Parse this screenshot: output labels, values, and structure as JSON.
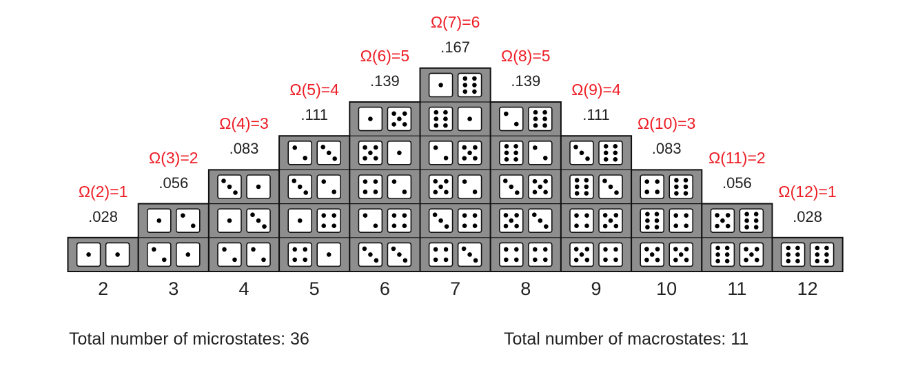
{
  "colors": {
    "omega_label": "#ee1c24",
    "text": "#222222",
    "block_fill": "#8e8e8e",
    "block_stroke": "#111111",
    "die_face": "#ffffff",
    "pip": "#000000"
  },
  "columns": [
    {
      "sum": "2",
      "omega": "Ω(2)=1",
      "probability": ".028",
      "pairs": [
        [
          1,
          1
        ]
      ]
    },
    {
      "sum": "3",
      "omega": "Ω(3)=2",
      "probability": ".056",
      "pairs": [
        [
          2,
          1
        ],
        [
          1,
          2
        ]
      ]
    },
    {
      "sum": "4",
      "omega": "Ω(4)=3",
      "probability": ".083",
      "pairs": [
        [
          2,
          2
        ],
        [
          1,
          3
        ],
        [
          3,
          1
        ]
      ]
    },
    {
      "sum": "5",
      "omega": "Ω(5)=4",
      "probability": ".111",
      "pairs": [
        [
          4,
          1
        ],
        [
          1,
          4
        ],
        [
          3,
          2
        ],
        [
          2,
          3
        ]
      ]
    },
    {
      "sum": "6",
      "omega": "Ω(6)=5",
      "probability": ".139",
      "pairs": [
        [
          3,
          3
        ],
        [
          2,
          4
        ],
        [
          4,
          2
        ],
        [
          5,
          1
        ],
        [
          1,
          5
        ]
      ]
    },
    {
      "sum": "7",
      "omega": "Ω(7)=6",
      "probability": ".167",
      "pairs": [
        [
          4,
          3
        ],
        [
          3,
          4
        ],
        [
          5,
          2
        ],
        [
          2,
          5
        ],
        [
          6,
          1
        ],
        [
          1,
          6
        ]
      ]
    },
    {
      "sum": "8",
      "omega": "Ω(8)=5",
      "probability": ".139",
      "pairs": [
        [
          4,
          4
        ],
        [
          5,
          3
        ],
        [
          3,
          5
        ],
        [
          6,
          2
        ],
        [
          2,
          6
        ]
      ]
    },
    {
      "sum": "9",
      "omega": "Ω(9)=4",
      "probability": ".111",
      "pairs": [
        [
          5,
          4
        ],
        [
          4,
          5
        ],
        [
          6,
          3
        ],
        [
          3,
          6
        ]
      ]
    },
    {
      "sum": "10",
      "omega": "Ω(10)=3",
      "probability": ".083",
      "pairs": [
        [
          5,
          5
        ],
        [
          6,
          4
        ],
        [
          4,
          6
        ]
      ]
    },
    {
      "sum": "11",
      "omega": "Ω(11)=2",
      "probability": ".056",
      "pairs": [
        [
          6,
          5
        ],
        [
          5,
          6
        ]
      ]
    },
    {
      "sum": "12",
      "omega": "Ω(12)=1",
      "probability": ".028",
      "pairs": [
        [
          6,
          6
        ]
      ]
    }
  ],
  "totals": {
    "microstates": "Total number of microstates: 36",
    "macrostates": "Total number of macrostates: 11"
  }
}
